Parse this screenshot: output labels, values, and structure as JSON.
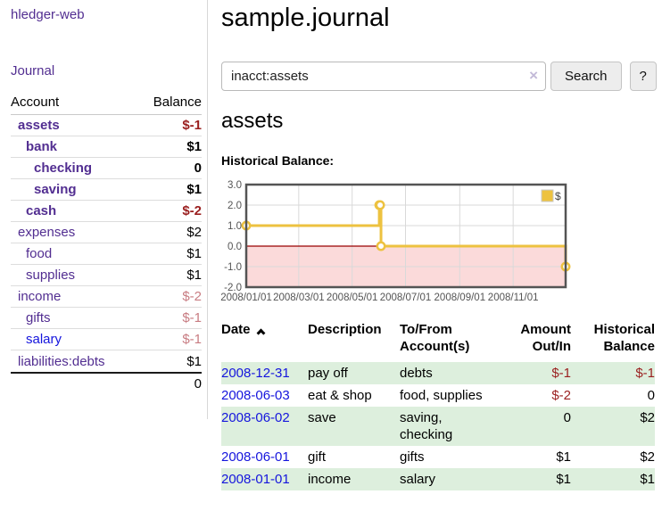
{
  "colors": {
    "link_purple": "#522e91",
    "link_blue": "#1515dd",
    "negative_dark": "#9a1f1f",
    "negative_light": "#c87c82",
    "row_stripe_green": "#ddefdd",
    "chart_line_gold": "#edc240",
    "chart_negative_fill": "#fbdada",
    "chart_zero_line": "#990000",
    "chart_border": "#545454"
  },
  "sidebar": {
    "app_title": "hledger-web",
    "journal_label": "Journal",
    "account_header": "Account",
    "balance_header": "Balance",
    "accounts": [
      {
        "name": "assets",
        "balance": "$-1",
        "indent": 1,
        "bold": true,
        "balance_style": "neg"
      },
      {
        "name": "bank",
        "balance": "$1",
        "indent": 2,
        "bold": true,
        "balance_style": "pos"
      },
      {
        "name": "checking",
        "balance": "0",
        "indent": 3,
        "bold": true,
        "balance_style": "pos"
      },
      {
        "name": "saving",
        "balance": "$1",
        "indent": 3,
        "bold": true,
        "balance_style": "pos"
      },
      {
        "name": "cash",
        "balance": "$-2",
        "indent": 2,
        "bold": true,
        "balance_style": "neg"
      },
      {
        "name": "expenses",
        "balance": "$2",
        "indent": 1,
        "bold": false,
        "balance_style": "pos"
      },
      {
        "name": "food",
        "balance": "$1",
        "indent": 2,
        "bold": false,
        "balance_style": "pos"
      },
      {
        "name": "supplies",
        "balance": "$1",
        "indent": 2,
        "bold": false,
        "balance_style": "pos"
      },
      {
        "name": "income",
        "balance": "$-2",
        "indent": 1,
        "bold": false,
        "balance_style": "neg-light"
      },
      {
        "name": "gifts",
        "balance": "$-1",
        "indent": 2,
        "bold": false,
        "balance_style": "neg-light"
      },
      {
        "name": "salary",
        "balance": "$-1",
        "indent": 2,
        "bold": false,
        "balance_style": "neg-light",
        "link_style": "unvisited"
      },
      {
        "name": "liabilities:debts",
        "balance": "$1",
        "indent": 1,
        "bold": false,
        "balance_style": "pos"
      }
    ],
    "total": "0"
  },
  "main": {
    "title": "sample.journal",
    "search": {
      "value": "inacct:assets",
      "clear_icon": "×",
      "button_label": "Search",
      "help_label": "?"
    },
    "account_heading": "assets",
    "chart_label": "Historical Balance:"
  },
  "chart_data": {
    "type": "line",
    "step": true,
    "title": "Historical Balance:",
    "series": [
      {
        "name": "$",
        "color": "#edc240",
        "points": [
          [
            "2008-01-01",
            1
          ],
          [
            "2008-06-01",
            2
          ],
          [
            "2008-06-02",
            2
          ],
          [
            "2008-06-03",
            0
          ],
          [
            "2008-12-31",
            -1
          ]
        ]
      }
    ],
    "ylim": [
      -2,
      3
    ],
    "yticks": [
      3,
      2,
      1,
      0,
      -1,
      -2
    ],
    "ytick_labels": [
      "3.0",
      "2.0",
      "1.0",
      "0.0",
      "-1.0",
      "-2.0"
    ],
    "xrange": [
      "2008-01-01",
      "2008-12-31"
    ],
    "xtick_labels": [
      "2008/01/01",
      "2008/03/01",
      "2008/05/01",
      "2008/07/01",
      "2008/09/01",
      "2008/11/01"
    ],
    "grid": true,
    "legend": {
      "label": "$",
      "position": "top-right"
    },
    "negative_region_fill": "#fbdada",
    "zero_line_color": "#990000"
  },
  "register": {
    "columns": [
      "Date",
      "Description",
      "To/From Account(s)",
      "Amount Out/In",
      "Historical Balance"
    ],
    "sort": "date-ascending",
    "rows": [
      {
        "date": "2008-12-31",
        "description": "pay off",
        "accounts": "debts",
        "amount": "$-1",
        "amount_negative": true,
        "balance": "$-1",
        "balance_negative": true
      },
      {
        "date": "2008-06-03",
        "description": "eat & shop",
        "accounts": "food, supplies",
        "amount": "$-2",
        "amount_negative": true,
        "balance": "0",
        "balance_negative": false
      },
      {
        "date": "2008-06-02",
        "description": "save",
        "accounts": "saving,\nchecking",
        "amount": "0",
        "amount_negative": false,
        "balance": "$2",
        "balance_negative": false
      },
      {
        "date": "2008-06-01",
        "description": "gift",
        "accounts": "gifts",
        "amount": "$1",
        "amount_negative": false,
        "balance": "$2",
        "balance_negative": false
      },
      {
        "date": "2008-01-01",
        "description": "income",
        "accounts": "salary",
        "amount": "$1",
        "amount_negative": false,
        "balance": "$1",
        "balance_negative": false
      }
    ]
  }
}
